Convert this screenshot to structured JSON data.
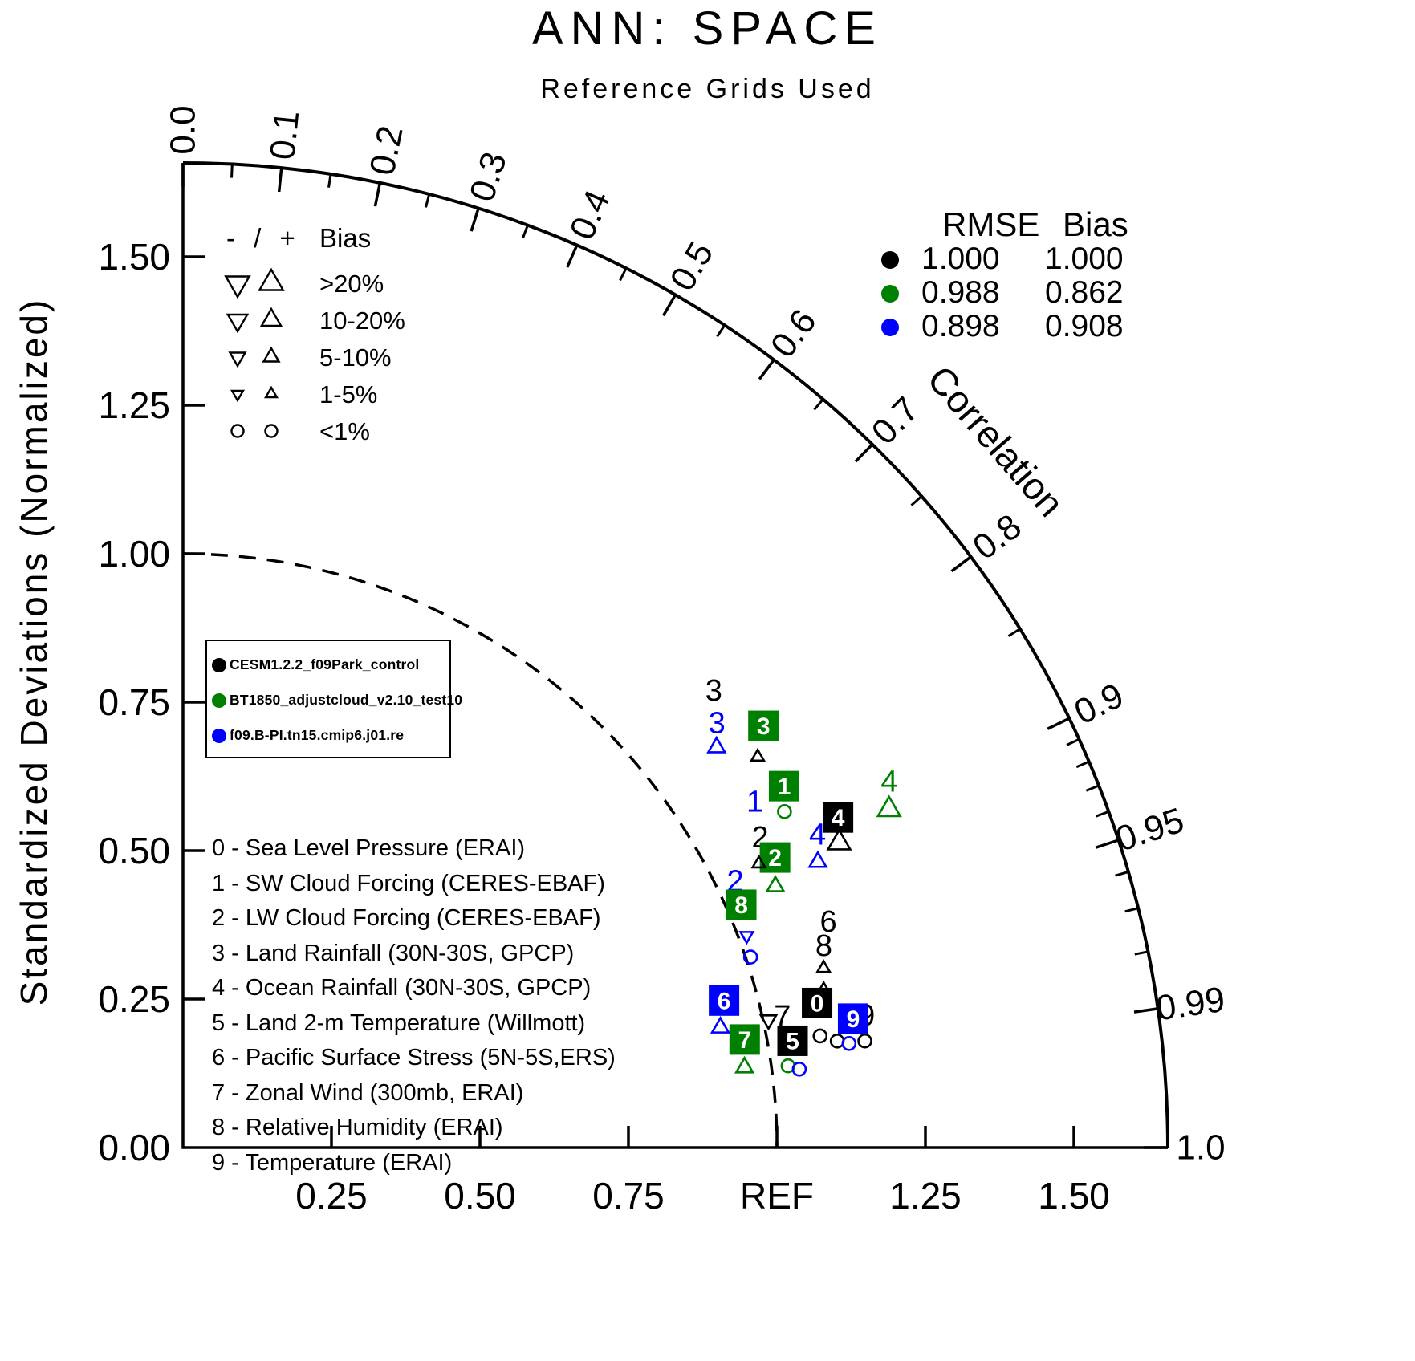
{
  "title": "ANN: SPACE",
  "subtitle": "Reference Grids Used",
  "colors": {
    "black": "#000000",
    "green": "#008000",
    "blue": "#0000ff"
  },
  "axes": {
    "y_label": "Standardized Deviations (Normalized)",
    "y_ticks": [
      {
        "v": 0,
        "t": "0.00"
      },
      {
        "v": 0.25,
        "t": "0.25"
      },
      {
        "v": 0.5,
        "t": "0.50"
      },
      {
        "v": 0.75,
        "t": "0.75"
      },
      {
        "v": 1,
        "t": "1.00"
      },
      {
        "v": 1.25,
        "t": "1.25"
      },
      {
        "v": 1.5,
        "t": "1.50"
      }
    ],
    "x_ticks": [
      {
        "v": 0.25,
        "t": "0.25"
      },
      {
        "v": 0.5,
        "t": "0.50"
      },
      {
        "v": 0.75,
        "t": "0.75"
      },
      {
        "v": 1,
        "t": "REF"
      },
      {
        "v": 1.25,
        "t": "1.25"
      },
      {
        "v": 1.5,
        "t": "1.50"
      }
    ],
    "correlation": {
      "label": "Correlation",
      "majors": [
        {
          "v": 0,
          "t": "0.0"
        },
        {
          "v": 0.1,
          "t": "0.1"
        },
        {
          "v": 0.2,
          "t": "0.2"
        },
        {
          "v": 0.3,
          "t": "0.3"
        },
        {
          "v": 0.4,
          "t": "0.4"
        },
        {
          "v": 0.5,
          "t": "0.5"
        },
        {
          "v": 0.6,
          "t": "0.6"
        },
        {
          "v": 0.7,
          "t": "0.7"
        },
        {
          "v": 0.8,
          "t": "0.8"
        },
        {
          "v": 0.9,
          "t": "0.9"
        },
        {
          "v": 0.95,
          "t": "0.95"
        },
        {
          "v": 0.99,
          "t": "0.99"
        },
        {
          "v": 1,
          "t": "1.0"
        }
      ],
      "minors": [
        0.05,
        0.15,
        0.25,
        0.35,
        0.45,
        0.55,
        0.65,
        0.75,
        0.85,
        0.91,
        0.92,
        0.93,
        0.94,
        0.96,
        0.97,
        0.98
      ]
    }
  },
  "bias_legend": {
    "header_symbols": "- / +",
    "header_label": "Bias",
    "rows": [
      {
        "size": "xl",
        "label": ">20%"
      },
      {
        "size": "lg",
        "label": "10-20%"
      },
      {
        "size": "md",
        "label": "5-10%"
      },
      {
        "size": "sm",
        "label": "1-5%"
      },
      {
        "size": "circle",
        "label": "<1%"
      }
    ]
  },
  "rmse_legend": {
    "header_rmse": "RMSE",
    "header_bias": "Bias",
    "rows": [
      {
        "model": "black",
        "rmse": "1.000",
        "bias": "1.000"
      },
      {
        "model": "green",
        "rmse": "0.988",
        "bias": "0.862"
      },
      {
        "model": "blue",
        "rmse": "0.898",
        "bias": "0.908"
      }
    ]
  },
  "model_legend": {
    "items": [
      {
        "model": "black",
        "name": "CESM1.2.2_f09Park_control"
      },
      {
        "model": "green",
        "name": "BT1850_adjustcloud_v2.10_test10"
      },
      {
        "model": "blue",
        "name": "f09.B-PI.tn15.cmip6.j01.re"
      }
    ]
  },
  "variables": [
    {
      "id": "0",
      "name": "Sea Level Pressure (ERAI)"
    },
    {
      "id": "1",
      "name": "SW Cloud Forcing (CERES-EBAF)"
    },
    {
      "id": "2",
      "name": "LW Cloud Forcing (CERES-EBAF)"
    },
    {
      "id": "3",
      "name": "Land Rainfall (30N-30S, GPCP)"
    },
    {
      "id": "4",
      "name": "Ocean Rainfall (30N-30S, GPCP)"
    },
    {
      "id": "5",
      "name": "Land 2-m Temperature (Willmott)"
    },
    {
      "id": "6",
      "name": "Pacific Surface Stress (5N-5S,ERS)"
    },
    {
      "id": "7",
      "name": "Zonal Wind (300mb, ERAI)"
    },
    {
      "id": "8",
      "name": "Relative Humidity (ERAI)"
    },
    {
      "id": "9",
      "name": "Temperature (ERAI)"
    }
  ],
  "chart_data": {
    "type": "scatter",
    "variant": "taylor_diagram",
    "title": "ANN: SPACE",
    "normalized": true,
    "ref_std": 1.0,
    "std_axis_max": 1.66,
    "grid": "reference_arc_dashed",
    "model_stats": [
      {
        "model": "CESM1.2.2_f09Park_control",
        "color": "black",
        "rmse": 1.0,
        "bias": 1.0
      },
      {
        "model": "BT1850_adjustcloud_v2.10_test10",
        "color": "green",
        "rmse": 0.988,
        "bias": 0.862
      },
      {
        "model": "f09.B-PI.tn15.cmip6.j01.re",
        "color": "blue",
        "rmse": 0.898,
        "bias": 0.908
      }
    ],
    "points": [
      {
        "var": "3",
        "model": "black",
        "glyph": "number",
        "corr": 0.758,
        "std": 1.179
      },
      {
        "var": "3",
        "model": "blue",
        "glyph": "number",
        "corr": 0.783,
        "std": 1.148
      },
      {
        "var": "1",
        "model": "blue",
        "glyph": "number",
        "corr": 0.856,
        "std": 1.125
      },
      {
        "var": "4",
        "model": "green",
        "glyph": "number",
        "corr": 0.888,
        "std": 1.339
      },
      {
        "var": "4",
        "model": "blue",
        "glyph": "number",
        "corr": 0.897,
        "std": 1.191
      },
      {
        "var": "2",
        "model": "black",
        "glyph": "number",
        "corr": 0.881,
        "std": 1.103
      },
      {
        "var": "2",
        "model": "blue",
        "glyph": "number",
        "corr": 0.901,
        "std": 1.032
      },
      {
        "var": "6",
        "model": "black",
        "glyph": "number",
        "corr": 0.944,
        "std": 1.151
      },
      {
        "var": "8",
        "model": "black",
        "glyph": "number",
        "corr": 0.954,
        "std": 1.131
      },
      {
        "var": "7",
        "model": "black",
        "glyph": "number",
        "corr": 0.977,
        "std": 1.033
      },
      {
        "var": "9",
        "model": "black",
        "glyph": "number",
        "corr": 0.982,
        "std": 1.172
      },
      {
        "var": "3",
        "model": "green",
        "glyph": "box",
        "corr": 0.809,
        "std": 1.208
      },
      {
        "var": "1",
        "model": "green",
        "glyph": "box",
        "corr": 0.857,
        "std": 1.181
      },
      {
        "var": "2",
        "model": "green",
        "glyph": "box",
        "corr": 0.898,
        "std": 1.11
      },
      {
        "var": "8",
        "model": "green",
        "glyph": "box",
        "corr": 0.917,
        "std": 1.025
      },
      {
        "var": "4",
        "model": "black",
        "glyph": "box",
        "corr": 0.893,
        "std": 1.235
      },
      {
        "var": "0",
        "model": "black",
        "glyph": "box",
        "corr": 0.975,
        "std": 1.095
      },
      {
        "var": "5",
        "model": "black",
        "glyph": "box",
        "corr": 0.985,
        "std": 1.042
      },
      {
        "var": "7",
        "model": "green",
        "glyph": "box",
        "corr": 0.982,
        "std": 0.963
      },
      {
        "var": "6",
        "model": "blue",
        "glyph": "box",
        "corr": 0.965,
        "std": 0.944
      },
      {
        "var": "9",
        "model": "blue",
        "glyph": "box",
        "corr": 0.982,
        "std": 1.149
      },
      {
        "model": "blue",
        "glyph": "triangle-up",
        "corr": 0.8,
        "std": 1.123,
        "size": 12
      },
      {
        "model": "black",
        "glyph": "triangle-up",
        "corr": 0.827,
        "std": 1.17,
        "size": 9
      },
      {
        "model": "green",
        "glyph": "circle",
        "corr": 0.873,
        "std": 1.16,
        "size": 8
      },
      {
        "model": "green",
        "glyph": "triangle-up",
        "corr": 0.902,
        "std": 1.318,
        "size": 16
      },
      {
        "model": "black",
        "glyph": "triangle-up",
        "corr": 0.907,
        "std": 1.218,
        "size": 16
      },
      {
        "model": "blue",
        "glyph": "triangle-up",
        "corr": 0.912,
        "std": 1.172,
        "size": 12
      },
      {
        "model": "black",
        "glyph": "triangle-up",
        "corr": 0.897,
        "std": 1.081,
        "size": 9
      },
      {
        "model": "green",
        "glyph": "triangle-up",
        "corr": 0.915,
        "std": 1.09,
        "size": 12
      },
      {
        "model": "blue",
        "glyph": "triangle-down",
        "corr": 0.936,
        "std": 1.014,
        "size": 9
      },
      {
        "model": "blue",
        "glyph": "circle",
        "corr": 0.948,
        "std": 1.008,
        "size": 8
      },
      {
        "model": "black",
        "glyph": "triangle-up",
        "corr": 0.963,
        "std": 1.12,
        "size": 9
      },
      {
        "model": "black",
        "glyph": "triangle-up",
        "corr": 0.971,
        "std": 1.111,
        "size": 9
      },
      {
        "model": "blue",
        "glyph": "triangle-up",
        "corr": 0.976,
        "std": 0.927,
        "size": 12
      },
      {
        "model": "black",
        "glyph": "triangle-down",
        "corr": 0.977,
        "std": 1.009,
        "size": 11
      },
      {
        "model": "green",
        "glyph": "triangle-up",
        "corr": 0.99,
        "std": 0.955,
        "size": 12
      },
      {
        "model": "green",
        "glyph": "circle",
        "corr": 0.991,
        "std": 1.028,
        "size": 8
      },
      {
        "model": "blue",
        "glyph": "circle",
        "corr": 0.992,
        "std": 1.046,
        "size": 8
      },
      {
        "model": "black",
        "glyph": "circle",
        "corr": 0.985,
        "std": 1.089,
        "size": 8
      },
      {
        "model": "black",
        "glyph": "circle",
        "corr": 0.987,
        "std": 1.116,
        "size": 8
      },
      {
        "model": "blue",
        "glyph": "circle",
        "corr": 0.988,
        "std": 1.135,
        "size": 8
      },
      {
        "model": "black",
        "glyph": "circle",
        "corr": 0.988,
        "std": 1.162,
        "size": 8
      }
    ]
  }
}
